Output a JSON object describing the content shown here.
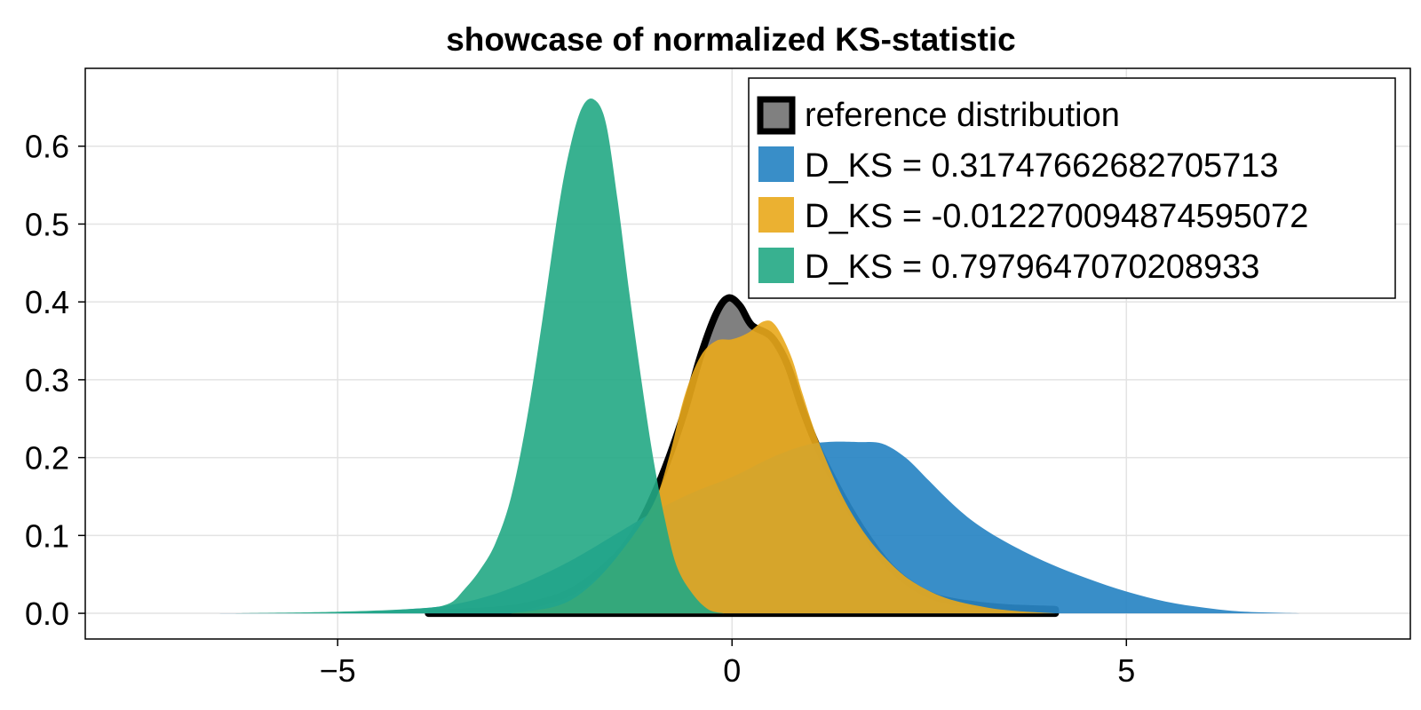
{
  "chart_data": {
    "type": "area",
    "title": "showcase of normalized KS-statistic",
    "xlabel": "",
    "ylabel": "",
    "xlim": [
      -8.2,
      8.6
    ],
    "ylim": [
      -0.033,
      0.7
    ],
    "x_ticks": [
      {
        "value": -5,
        "label": "−5"
      },
      {
        "value": 0,
        "label": "0"
      },
      {
        "value": 5,
        "label": "5"
      }
    ],
    "y_ticks": [
      {
        "value": 0.0,
        "label": "0.0"
      },
      {
        "value": 0.1,
        "label": "0.1"
      },
      {
        "value": 0.2,
        "label": "0.2"
      },
      {
        "value": 0.3,
        "label": "0.3"
      },
      {
        "value": 0.4,
        "label": "0.4"
      },
      {
        "value": 0.5,
        "label": "0.5"
      },
      {
        "value": 0.6,
        "label": "0.6"
      }
    ],
    "grid": true,
    "legend_position": "top-right",
    "series": [
      {
        "name": "reference distribution",
        "fill": "#808080",
        "stroke": "#000000",
        "opacity": 1.0,
        "points": [
          [
            -3.85,
            0
          ],
          [
            -3.0,
            0.004
          ],
          [
            -2.5,
            0.012
          ],
          [
            -2.0,
            0.03
          ],
          [
            -1.5,
            0.07
          ],
          [
            -1.2,
            0.11
          ],
          [
            -1.0,
            0.15
          ],
          [
            -0.8,
            0.2
          ],
          [
            -0.6,
            0.26
          ],
          [
            -0.4,
            0.33
          ],
          [
            -0.2,
            0.385
          ],
          [
            -0.05,
            0.405
          ],
          [
            0.1,
            0.395
          ],
          [
            0.25,
            0.37
          ],
          [
            0.5,
            0.355
          ],
          [
            0.7,
            0.32
          ],
          [
            0.9,
            0.26
          ],
          [
            1.1,
            0.21
          ],
          [
            1.4,
            0.15
          ],
          [
            1.7,
            0.1
          ],
          [
            2.0,
            0.06
          ],
          [
            2.3,
            0.035
          ],
          [
            2.6,
            0.02
          ],
          [
            3.0,
            0.012
          ],
          [
            3.5,
            0.007
          ],
          [
            4.1,
            0.005
          ]
        ]
      },
      {
        "name": "D_KS = 0.31747662682705713",
        "fill": "#2a85c4",
        "opacity": 0.93,
        "points": [
          [
            -6.5,
            0
          ],
          [
            -5.0,
            0.001
          ],
          [
            -4.0,
            0.006
          ],
          [
            -3.5,
            0.012
          ],
          [
            -3.0,
            0.025
          ],
          [
            -2.5,
            0.045
          ],
          [
            -2.0,
            0.07
          ],
          [
            -1.5,
            0.1
          ],
          [
            -1.0,
            0.13
          ],
          [
            -0.5,
            0.155
          ],
          [
            0.0,
            0.175
          ],
          [
            0.5,
            0.2
          ],
          [
            0.9,
            0.215
          ],
          [
            1.2,
            0.22
          ],
          [
            1.6,
            0.22
          ],
          [
            1.9,
            0.218
          ],
          [
            2.2,
            0.2
          ],
          [
            2.5,
            0.17
          ],
          [
            2.8,
            0.14
          ],
          [
            3.1,
            0.115
          ],
          [
            3.5,
            0.09
          ],
          [
            4.0,
            0.065
          ],
          [
            4.5,
            0.045
          ],
          [
            5.0,
            0.028
          ],
          [
            5.5,
            0.015
          ],
          [
            6.0,
            0.007
          ],
          [
            6.5,
            0.002
          ],
          [
            7.2,
            0
          ]
        ]
      },
      {
        "name": "D_KS = -0.012270094874595072",
        "fill": "#e9a91b",
        "opacity": 0.9,
        "points": [
          [
            -2.8,
            0
          ],
          [
            -2.2,
            0.01
          ],
          [
            -1.8,
            0.035
          ],
          [
            -1.4,
            0.08
          ],
          [
            -1.0,
            0.14
          ],
          [
            -0.8,
            0.2
          ],
          [
            -0.6,
            0.28
          ],
          [
            -0.4,
            0.33
          ],
          [
            -0.2,
            0.35
          ],
          [
            0.0,
            0.352
          ],
          [
            0.2,
            0.36
          ],
          [
            0.4,
            0.375
          ],
          [
            0.55,
            0.37
          ],
          [
            0.75,
            0.33
          ],
          [
            0.9,
            0.28
          ],
          [
            1.1,
            0.22
          ],
          [
            1.4,
            0.15
          ],
          [
            1.7,
            0.1
          ],
          [
            2.0,
            0.065
          ],
          [
            2.3,
            0.04
          ],
          [
            2.7,
            0.02
          ],
          [
            3.2,
            0.008
          ],
          [
            3.6,
            0.003
          ],
          [
            4.1,
            0
          ]
        ]
      },
      {
        "name": "D_KS = 0.7979647070208933",
        "fill": "#22a884",
        "opacity": 0.9,
        "points": [
          [
            -6.3,
            0
          ],
          [
            -5.0,
            0.002
          ],
          [
            -4.0,
            0.006
          ],
          [
            -3.6,
            0.012
          ],
          [
            -3.4,
            0.03
          ],
          [
            -3.2,
            0.055
          ],
          [
            -3.0,
            0.09
          ],
          [
            -2.8,
            0.15
          ],
          [
            -2.6,
            0.25
          ],
          [
            -2.4,
            0.38
          ],
          [
            -2.2,
            0.52
          ],
          [
            -2.05,
            0.6
          ],
          [
            -1.9,
            0.65
          ],
          [
            -1.75,
            0.66
          ],
          [
            -1.6,
            0.63
          ],
          [
            -1.45,
            0.53
          ],
          [
            -1.3,
            0.41
          ],
          [
            -1.15,
            0.3
          ],
          [
            -1.0,
            0.2
          ],
          [
            -0.85,
            0.12
          ],
          [
            -0.7,
            0.06
          ],
          [
            -0.5,
            0.025
          ],
          [
            -0.3,
            0.005
          ],
          [
            -0.1,
            0
          ]
        ]
      }
    ]
  }
}
